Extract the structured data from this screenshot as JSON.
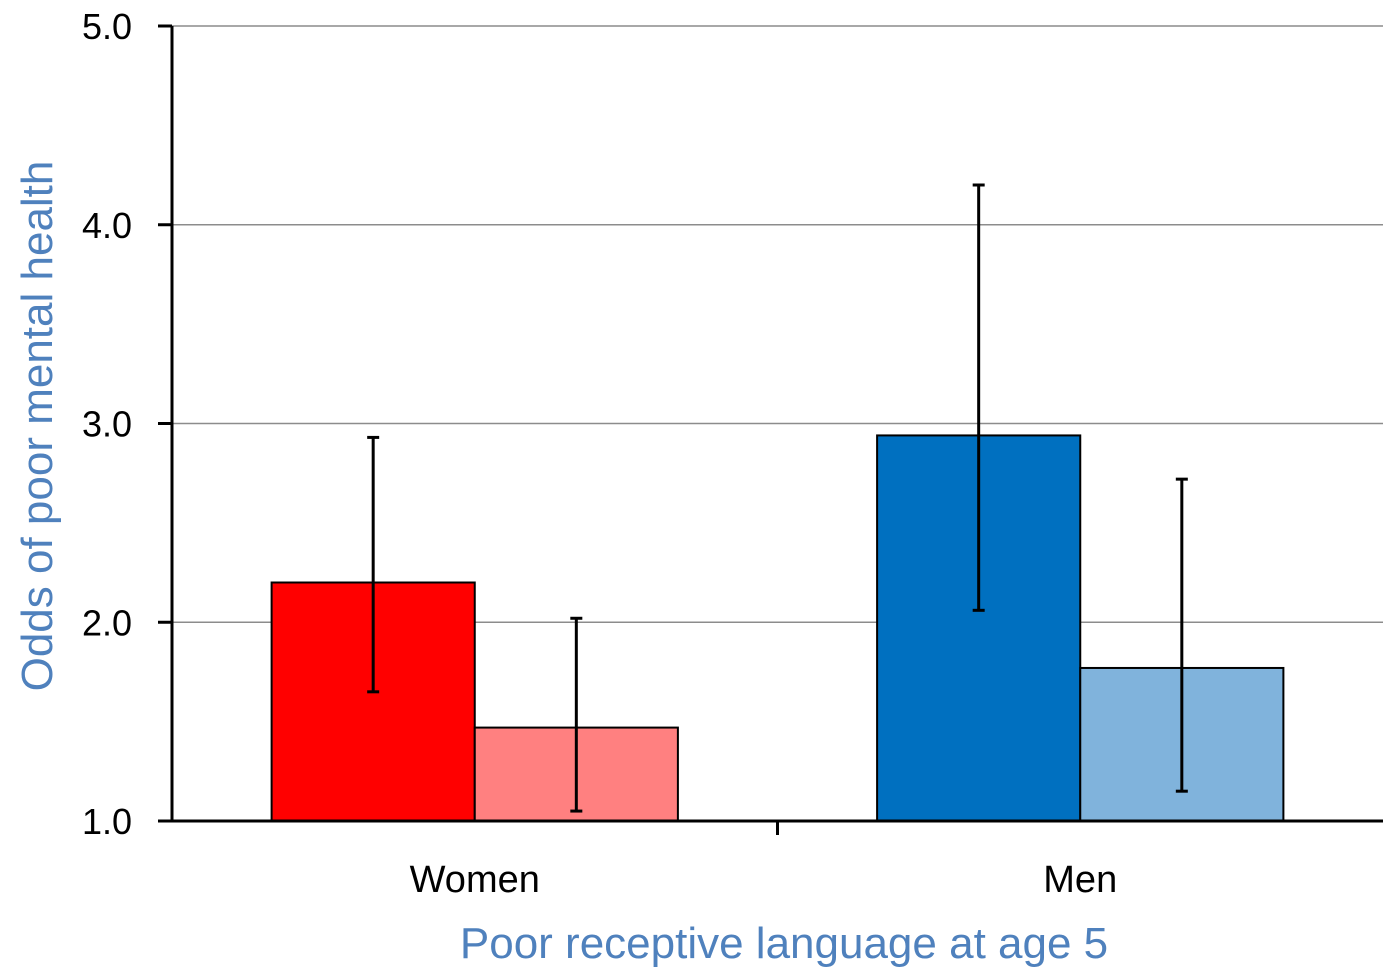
{
  "chart_data": {
    "type": "bar",
    "title": "",
    "xlabel": "Poor receptive language at age 5",
    "ylabel": "Odds of poor mental health",
    "ylim": [
      1.0,
      5.0
    ],
    "yticks": [
      "1.0",
      "2.0",
      "3.0",
      "4.0",
      "5.0"
    ],
    "grid": true,
    "categories": [
      "Women",
      "Men"
    ],
    "series": [
      {
        "values": [
          2.2,
          2.94
        ],
        "ci_low": [
          1.65,
          2.06
        ],
        "ci_high": [
          2.93,
          4.2
        ]
      },
      {
        "values": [
          1.47,
          1.77
        ],
        "ci_low": [
          1.05,
          1.15
        ],
        "ci_high": [
          2.02,
          2.72
        ]
      }
    ],
    "colors": {
      "Women": [
        "#ff0000",
        "#ff8080"
      ],
      "Men": [
        "#0070c0",
        "#80b3dc"
      ],
      "axis_title": "#4f81bd",
      "grid": "#8c8c8c"
    }
  }
}
